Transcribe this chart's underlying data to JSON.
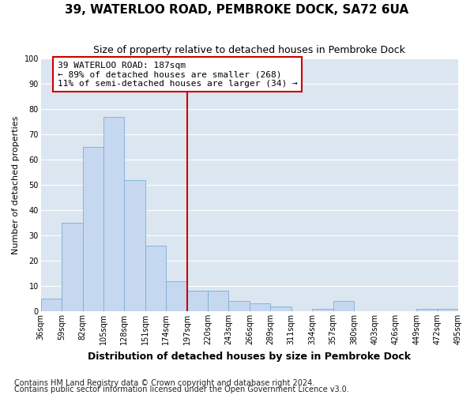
{
  "title": "39, WATERLOO ROAD, PEMBROKE DOCK, SA72 6UA",
  "subtitle": "Size of property relative to detached houses in Pembroke Dock",
  "xlabel": "Distribution of detached houses by size in Pembroke Dock",
  "ylabel": "Number of detached properties",
  "footnote1": "Contains HM Land Registry data © Crown copyright and database right 2024.",
  "footnote2": "Contains public sector information licensed under the Open Government Licence v3.0.",
  "annotation_line1": "39 WATERLOO ROAD: 187sqm",
  "annotation_line2": "← 89% of detached houses are smaller (268)",
  "annotation_line3": "11% of semi-detached houses are larger (34) →",
  "bar_values": [
    5,
    35,
    65,
    77,
    52,
    26,
    12,
    8,
    8,
    4,
    3,
    2,
    0,
    1,
    4,
    0,
    0,
    0,
    1,
    1
  ],
  "bin_labels": [
    "36sqm",
    "59sqm",
    "82sqm",
    "105sqm",
    "128sqm",
    "151sqm",
    "174sqm",
    "197sqm",
    "220sqm",
    "243sqm",
    "266sqm",
    "289sqm",
    "311sqm",
    "334sqm",
    "357sqm",
    "380sqm",
    "403sqm",
    "426sqm",
    "449sqm",
    "472sqm",
    "495sqm"
  ],
  "bar_color": "#c5d8f0",
  "bar_edge_color": "#7aadd4",
  "vline_x_bar_index": 7,
  "vline_color": "#cc0000",
  "annotation_box_color": "#cc0000",
  "plot_bg_color": "#dce6f0",
  "fig_bg_color": "#ffffff",
  "grid_color": "#ffffff",
  "ylim": [
    0,
    100
  ],
  "title_fontsize": 11,
  "subtitle_fontsize": 9,
  "xlabel_fontsize": 9,
  "ylabel_fontsize": 8,
  "tick_fontsize": 7,
  "annotation_fontsize": 8,
  "footnote_fontsize": 7
}
